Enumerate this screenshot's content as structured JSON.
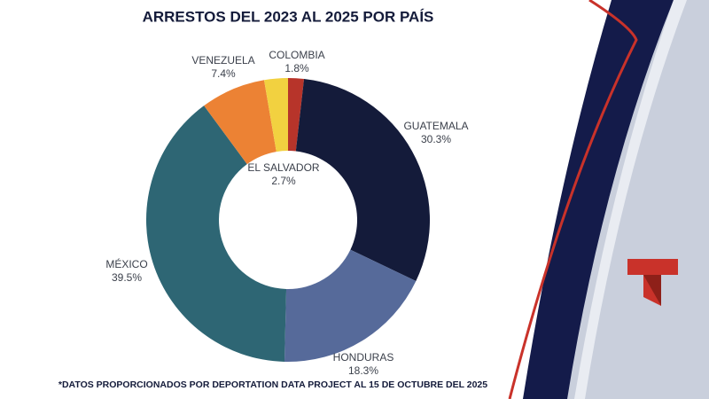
{
  "chart_data": {
    "type": "donut",
    "title": "ARRESTOS DEL 2023 AL 2025 POR PAÍS",
    "categories": [
      "COLOMBIA",
      "GUATEMALA",
      "HONDURAS",
      "MÉXICO",
      "VENEZUELA",
      "EL SALVADOR"
    ],
    "values": [
      1.8,
      30.3,
      18.3,
      39.5,
      7.4,
      2.7
    ],
    "value_labels": [
      "1.8%",
      "30.3%",
      "18.3%",
      "39.5%",
      "7.4%",
      "2.7%"
    ],
    "colors": [
      "#b7342a",
      "#141b3a",
      "#566a9a",
      "#2e6674",
      "#ec8234",
      "#f2d140"
    ],
    "footnote": "*DATOS PROPORCIONADOS POR DEPORTATION DATA PROJECT AL 15 DE OCTUBRE DEL 2025"
  }
}
